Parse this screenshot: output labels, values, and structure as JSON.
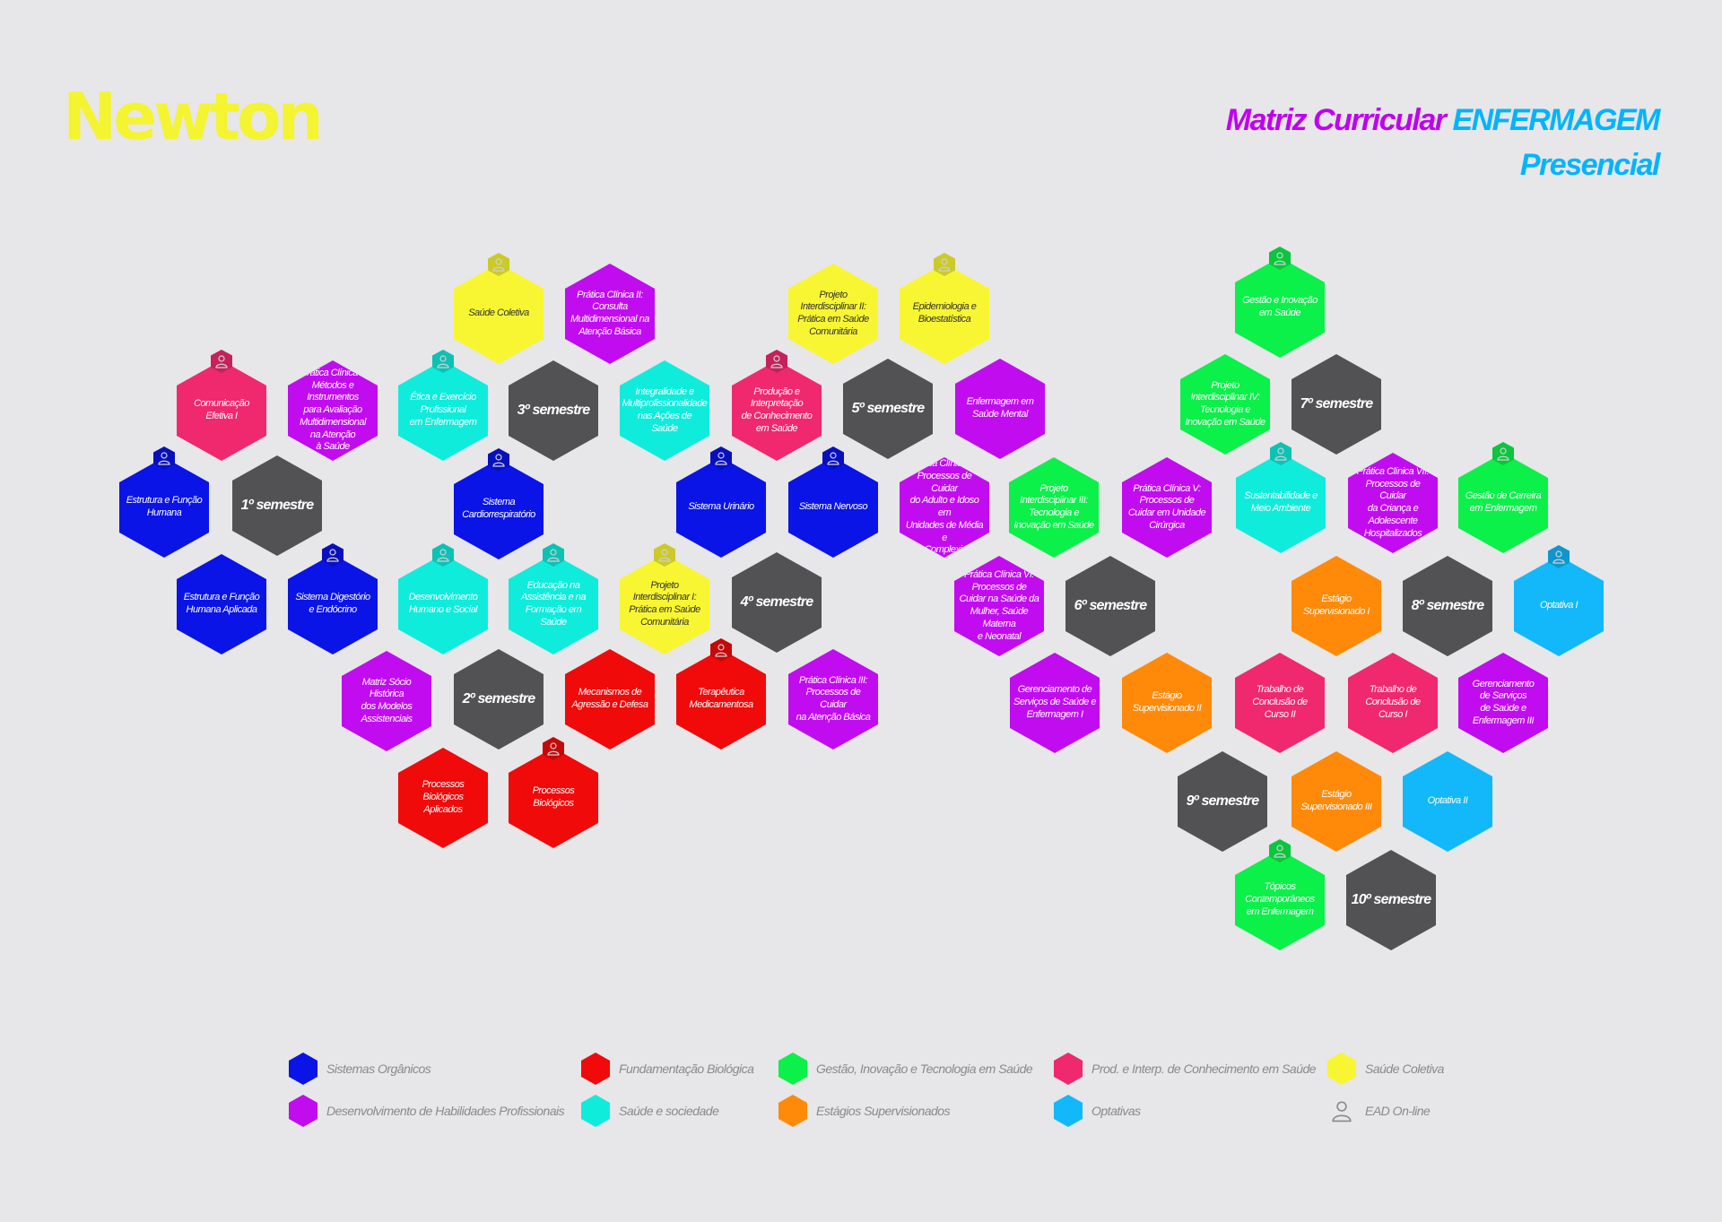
{
  "header": {
    "logo": "Newton",
    "title_a": "Matriz Curricular",
    "title_b": "ENFERMAGEM",
    "subtitle": "Presencial"
  },
  "colors": {
    "organicos": "#0a14e6",
    "habilidades": "#c10cf0",
    "fundamentacao": "#f00a0a",
    "sociedade": "#10ecdc",
    "gestao": "#0cf04a",
    "estagios": "#ff8a0a",
    "producao": "#f0286e",
    "optativas": "#12b8fa",
    "coletiva": "#f8f632",
    "semestre": "#525254"
  },
  "hexes": [
    {
      "id": "saude-coletiva-1",
      "label": "Saúde Coletiva",
      "cat": "coletiva",
      "ead": true
    },
    {
      "id": "pratica-clinica-ii",
      "label": "Prática Clínica II:\nConsulta\nMultidimensional na\nAtenção Básica",
      "cat": "habilidades",
      "ead": false
    },
    {
      "id": "pi-ii",
      "label": "Projeto\nInterdisciplinar II:\nPrática em Saúde\nComunitária",
      "cat": "coletiva",
      "ead": false
    },
    {
      "id": "epidemiologia",
      "label": "Epidemiologia e\nBioestatística",
      "cat": "coletiva",
      "ead": true
    },
    {
      "id": "gestao-inovacao",
      "label": "Gestão e Inovação\nem Saúde",
      "cat": "gestao",
      "ead": true
    },
    {
      "id": "comunicacao",
      "label": "Comunicação\nEfetiva I",
      "cat": "producao",
      "ead": true
    },
    {
      "id": "pratica-clinica-i",
      "label": "Prática Clínica I:\nMétodos e Instrumentos\npara Avaliação\nMultidimensional\nna Atenção\nà Saúde",
      "cat": "habilidades",
      "ead": false
    },
    {
      "id": "etica",
      "label": "Ética e Exercício\nProfissional\nem Enfermagem",
      "cat": "sociedade",
      "ead": true
    },
    {
      "id": "sem-3",
      "label": "3º semestre",
      "cat": "semestre",
      "ead": false
    },
    {
      "id": "integralidade",
      "label": "Integralidade e\nMultiprofissionalidade\nnas Ações de\nSaúde",
      "cat": "sociedade",
      "ead": false
    },
    {
      "id": "producao",
      "label": "Produção e\nInterpretação\nde Conhecimento\nem Saúde",
      "cat": "producao",
      "ead": true
    },
    {
      "id": "sem-5",
      "label": "5º semestre",
      "cat": "semestre",
      "ead": false
    },
    {
      "id": "enf-saude-mental",
      "label": "Enfermagem em\nSaúde Mental",
      "cat": "habilidades",
      "ead": false
    },
    {
      "id": "pi-iv",
      "label": "Projeto\nInterdisciplinar IV:\nTecnologia e\nInovação em Saúde",
      "cat": "gestao",
      "ead": false
    },
    {
      "id": "sem-7",
      "label": "7º semestre",
      "cat": "semestre",
      "ead": false
    },
    {
      "id": "estrutura-funcao",
      "label": "Estrutura e Função\nHumana",
      "cat": "organicos",
      "ead": true
    },
    {
      "id": "sem-1",
      "label": "1º semestre",
      "cat": "semestre",
      "ead": false
    },
    {
      "id": "sistema-cardio",
      "label": "Sistema\nCardiorrespiratório",
      "cat": "organicos",
      "ead": true
    },
    {
      "id": "sistema-urinario",
      "label": "Sistema Urinário",
      "cat": "organicos",
      "ead": true
    },
    {
      "id": "sistema-nervoso",
      "label": "Sistema Nervoso",
      "cat": "organicos",
      "ead": true
    },
    {
      "id": "pratica-clinica-iv",
      "label": "Prática Clínica IV:\nProcessos de Cuidar\ndo Adulto e Idoso em\nUnidades de Média e\nAlta Complexidade",
      "cat": "habilidades",
      "ead": false
    },
    {
      "id": "pi-iii",
      "label": "Projeto\nInterdisciplinar III:\nTecnologia e\nInovação em Saúde",
      "cat": "gestao",
      "ead": false
    },
    {
      "id": "pratica-clinica-v",
      "label": "Prática Clínica V:\nProcessos de\nCuidar em Unidade\nCirúrgica",
      "cat": "habilidades",
      "ead": false
    },
    {
      "id": "sustentabilidade",
      "label": "Sustentabilidade e\nMeio Ambiente",
      "cat": "sociedade",
      "ead": true
    },
    {
      "id": "pratica-clinica-vii",
      "label": "Prática Clínica VII:\nProcessos de Cuidar\nda Criança e\nAdolescente\nHospitalizados",
      "cat": "habilidades",
      "ead": false
    },
    {
      "id": "gestao-carreira",
      "label": "Gestão de Carreira\nem Enfermagem",
      "cat": "gestao",
      "ead": true
    },
    {
      "id": "estrutura-funcao-aplicada",
      "label": "Estrutura e Função\nHumana Aplicada",
      "cat": "organicos",
      "ead": false
    },
    {
      "id": "sistema-digestorio",
      "label": "Sistema Digestório\ne Endócrino",
      "cat": "organicos",
      "ead": true
    },
    {
      "id": "desenvolvimento",
      "label": "Desenvolvimento\nHumano e Social",
      "cat": "sociedade",
      "ead": true
    },
    {
      "id": "educacao",
      "label": "Educação na\nAssistência e na\nFormação em Saúde",
      "cat": "sociedade",
      "ead": true
    },
    {
      "id": "pi-i",
      "label": "Projeto\nInterdisciplinar I:\nPrática em Saúde\nComunitária",
      "cat": "coletiva",
      "ead": true
    },
    {
      "id": "sem-4",
      "label": "4º semestre",
      "cat": "semestre",
      "ead": false
    },
    {
      "id": "pratica-clinica-vi",
      "label": "Prática Clínica VI:\nProcessos de\nCuidar na Saúde da\nMulher, Saúde Materna\ne Neonatal",
      "cat": "habilidades",
      "ead": false
    },
    {
      "id": "sem-6",
      "label": "6º semestre",
      "cat": "semestre",
      "ead": false
    },
    {
      "id": "estagio-i",
      "label": "Estágio\nSupervisionado I",
      "cat": "estagios",
      "ead": false
    },
    {
      "id": "sem-8",
      "label": "8º semestre",
      "cat": "semestre",
      "ead": false
    },
    {
      "id": "optativa-i",
      "label": "Optativa I",
      "cat": "optativas",
      "ead": true
    },
    {
      "id": "matriz-socio",
      "label": "Matriz Sócio\nHistórica\ndos Modelos\nAssistenciais",
      "cat": "habilidades",
      "ead": false
    },
    {
      "id": "sem-2",
      "label": "2º semestre",
      "cat": "semestre",
      "ead": false
    },
    {
      "id": "mecanismos",
      "label": "Mecanismos de\nAgressão e Defesa",
      "cat": "fundamentacao",
      "ead": false
    },
    {
      "id": "terapeutica",
      "label": "Terapêutica\nMedicamentosa",
      "cat": "fundamentacao",
      "ead": true
    },
    {
      "id": "pratica-clinica-iii",
      "label": "Prática Clínica III:\nProcessos de Cuidar\nna Atenção Básica",
      "cat": "habilidades",
      "ead": false
    },
    {
      "id": "gerenciamento-i",
      "label": "Gerenciamento de\nServiços de Saúde e\nEnfermagem I",
      "cat": "habilidades",
      "ead": false
    },
    {
      "id": "estagio-ii",
      "label": "Estágio\nSupervisionado II",
      "cat": "estagios",
      "ead": false
    },
    {
      "id": "tcc-ii",
      "label": "Trabalho de\nConclusão de\nCurso II",
      "cat": "producao",
      "ead": false
    },
    {
      "id": "tcc-i",
      "label": "Trabalho de\nConclusão de\nCurso I",
      "cat": "producao",
      "ead": false
    },
    {
      "id": "gerenciamento-iii",
      "label": "Gerenciamento\nde Serviços\nde Saúde e\nEnfermagem III",
      "cat": "habilidades",
      "ead": false
    },
    {
      "id": "processos-bio-aplicados",
      "label": "Processos Biológicos\nAplicados",
      "cat": "fundamentacao",
      "ead": false
    },
    {
      "id": "processos-bio",
      "label": "Processos Biológicos",
      "cat": "fundamentacao",
      "ead": true
    },
    {
      "id": "sem-9",
      "label": "9º semestre",
      "cat": "semestre",
      "ead": false
    },
    {
      "id": "estagio-iii",
      "label": "Estágio\nSupervisionado III",
      "cat": "estagios",
      "ead": false
    },
    {
      "id": "optativa-ii",
      "label": "Optativa II",
      "cat": "optativas",
      "ead": false
    },
    {
      "id": "topicos",
      "label": "Tópicos\nContemporâneos\nem Enfermagem",
      "cat": "gestao",
      "ead": true
    },
    {
      "id": "sem-10",
      "label": "10º semestre",
      "cat": "semestre",
      "ead": false
    }
  ],
  "legend": [
    {
      "cat": "organicos",
      "label": "Sistemas Orgânicos"
    },
    {
      "cat": "habilidades",
      "label": "Desenvolvimento de Habilidades Profissionais"
    },
    {
      "cat": "fundamentacao",
      "label": "Fundamentação Biológica"
    },
    {
      "cat": "sociedade",
      "label": "Saúde e sociedade"
    },
    {
      "cat": "gestao",
      "label": "Gestão, Inovação e Tecnologia em Saúde"
    },
    {
      "cat": "estagios",
      "label": "Estágios Supervisionados"
    },
    {
      "cat": "producao",
      "label": "Prod. e Interp. de Conhecimento em Saúde"
    },
    {
      "cat": "optativas",
      "label": "Optativas"
    },
    {
      "cat": "coletiva",
      "label": "Saúde Coletiva"
    },
    {
      "cat": "ead",
      "label": "EAD On-line"
    }
  ]
}
